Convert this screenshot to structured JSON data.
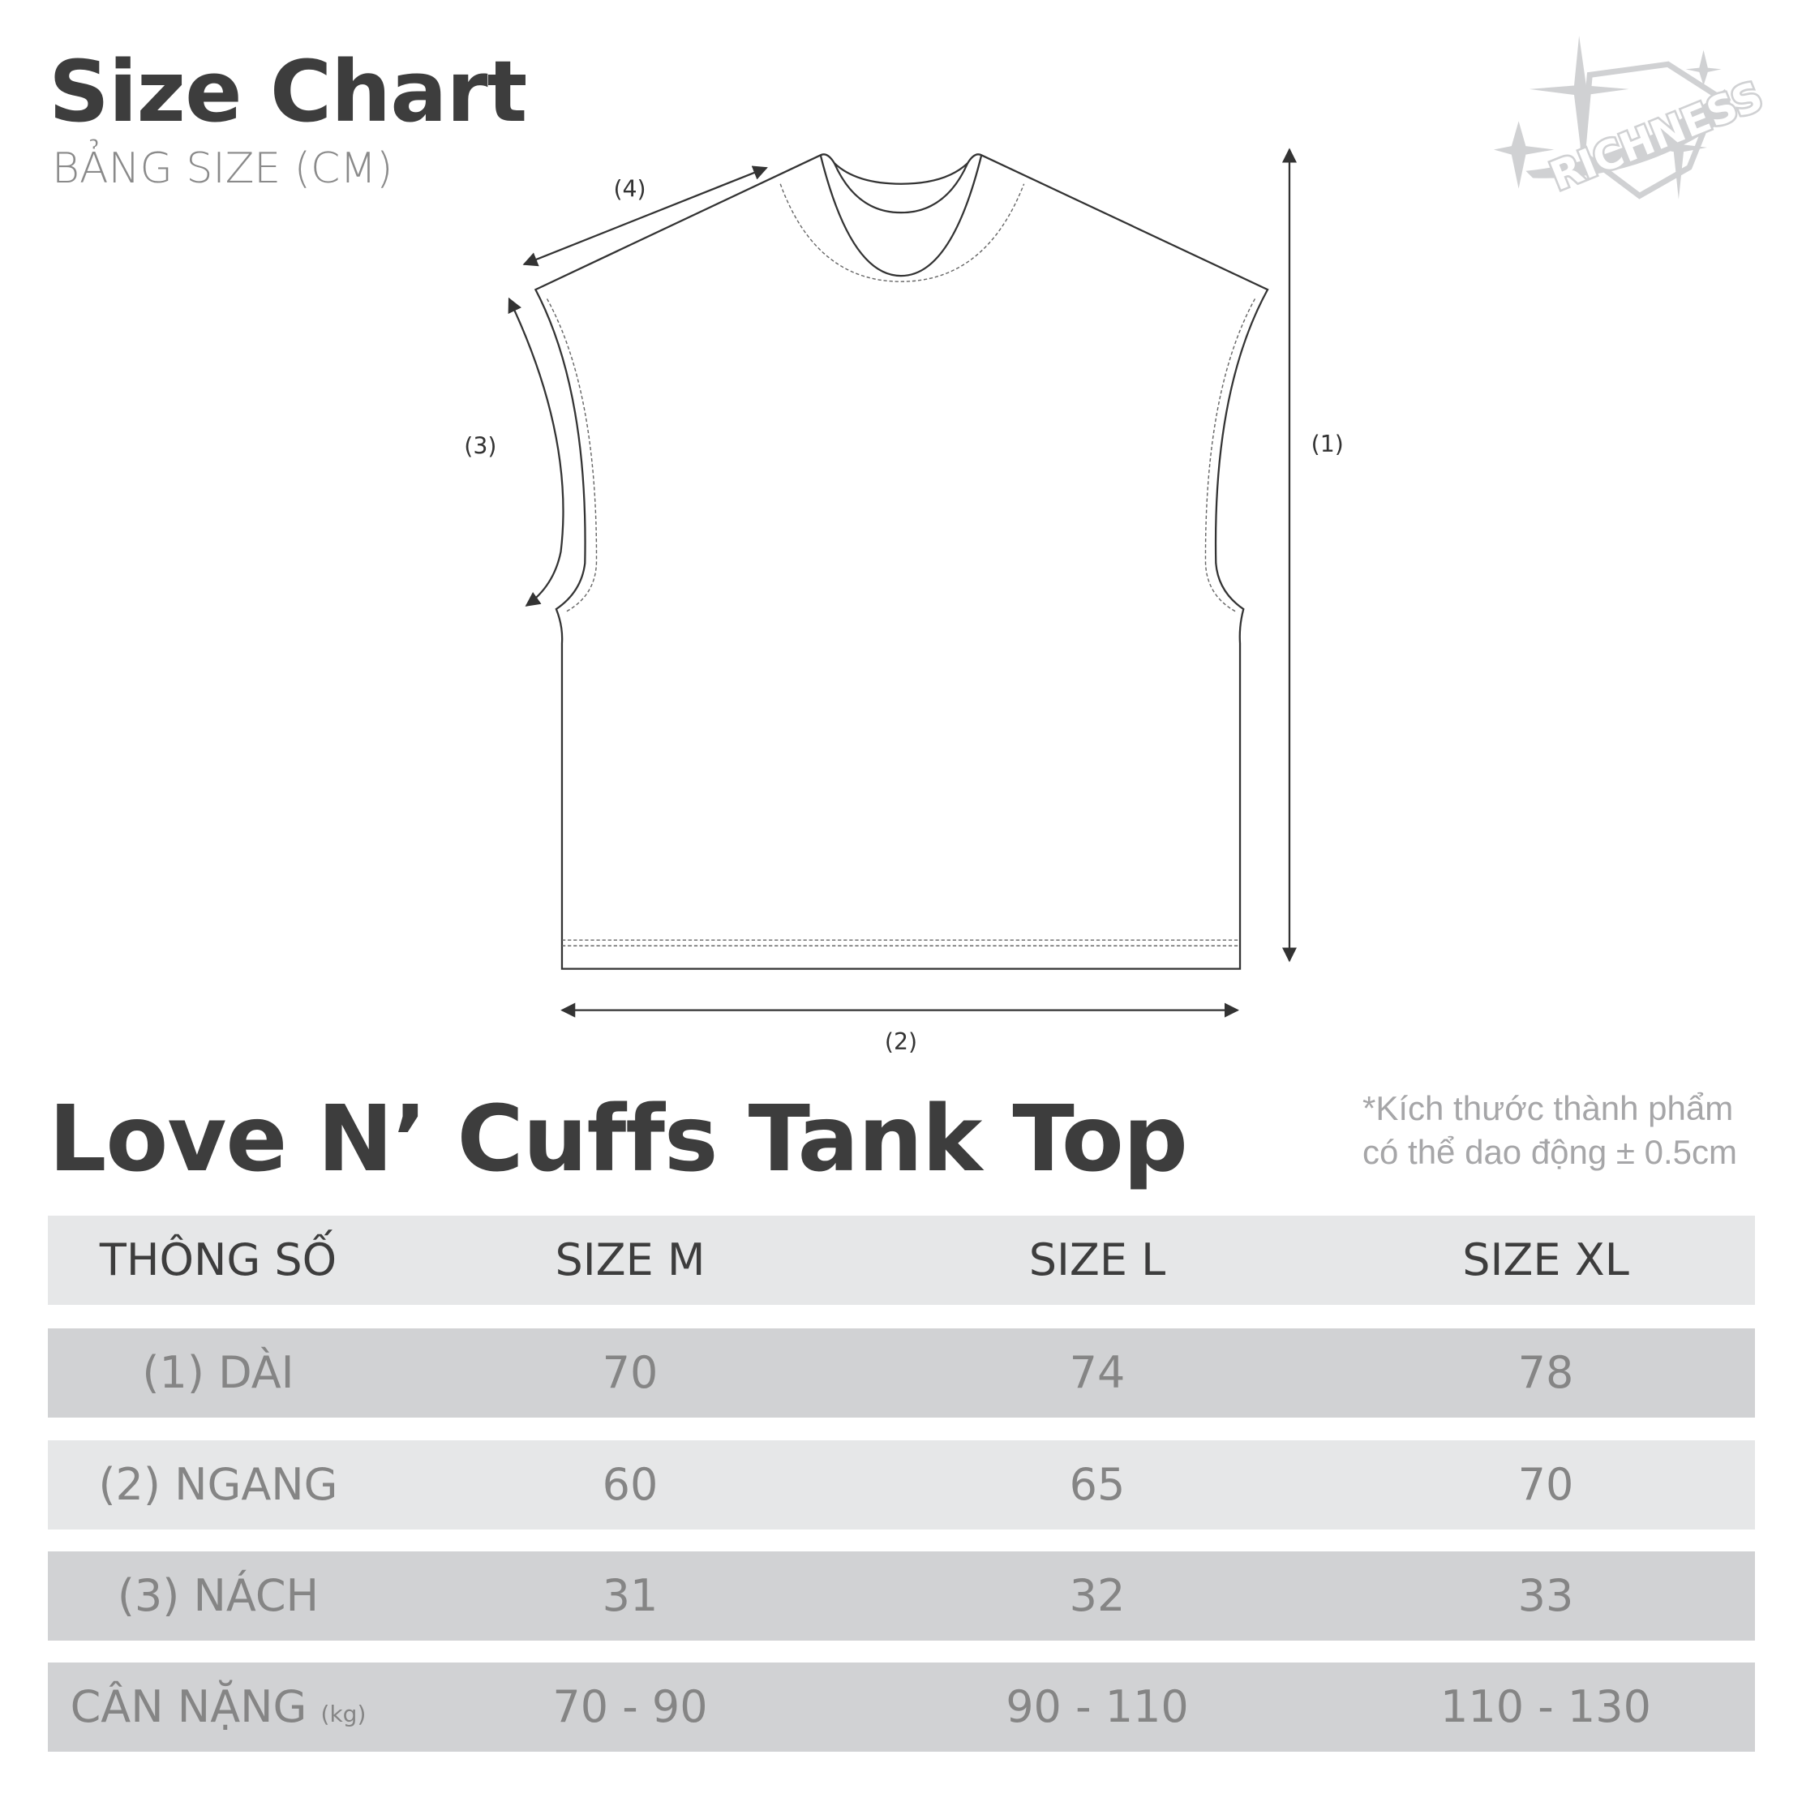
{
  "header": {
    "title": "Size Chart",
    "subtitle": "BẢNG SIZE (CM)"
  },
  "logo": {
    "text": "RICHNESS",
    "color": "#d0d1d3"
  },
  "diagram": {
    "labels": {
      "length": "(1)",
      "width": "(2)",
      "armhole": "(3)",
      "shoulder": "(4)"
    }
  },
  "product": {
    "title": "Love N’ Cuffs Tank Top"
  },
  "note": {
    "line1": "*Kích thước thành phẩm",
    "line2": "có thể dao động ± 0.5cm"
  },
  "table": {
    "columns": [
      "THÔNG SỐ",
      "SIZE M",
      "SIZE L",
      "SIZE XL"
    ],
    "rows": [
      {
        "label": "(1) DÀI",
        "unit": "",
        "values": [
          "70",
          "74",
          "78"
        ]
      },
      {
        "label": "(2) NGANG",
        "unit": "",
        "values": [
          "60",
          "65",
          "70"
        ]
      },
      {
        "label": "(3) NÁCH",
        "unit": "",
        "values": [
          "31",
          "32",
          "33"
        ]
      },
      {
        "label": "CÂN NẶNG",
        "unit": "(kg)",
        "values": [
          "70 - 90",
          "90 - 110",
          "110 - 130"
        ]
      }
    ],
    "colors": {
      "header_bg": "#e6e7e8",
      "row_dark": "#d1d2d4",
      "row_light": "#e6e7e8"
    }
  }
}
